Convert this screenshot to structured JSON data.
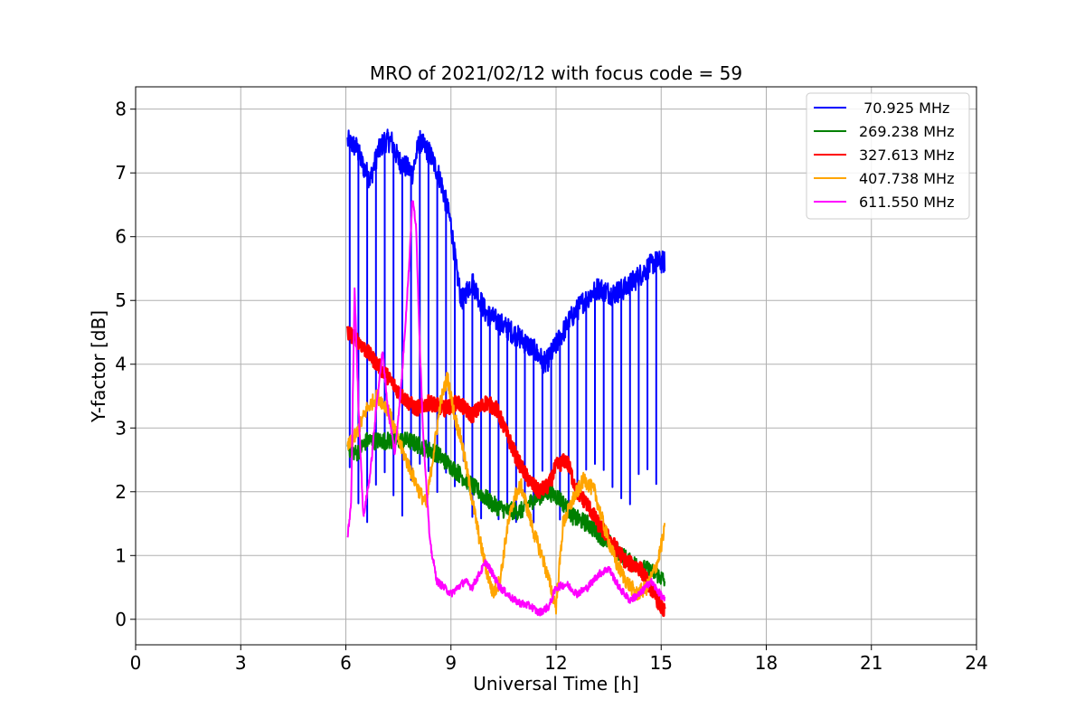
{
  "chart_data": {
    "type": "line",
    "title": "MRO of 2021/02/12 with focus code = 59",
    "xlabel": "Universal Time [h]",
    "ylabel": "Y-factor [dB]",
    "xlim": [
      0,
      24
    ],
    "ylim": [
      -0.4,
      8.35
    ],
    "xticks": [
      0,
      3,
      6,
      9,
      12,
      15,
      18,
      21,
      24
    ],
    "yticks": [
      0,
      1,
      2,
      3,
      4,
      5,
      6,
      7,
      8
    ],
    "grid": true,
    "legend_position": "top-right",
    "series": [
      {
        "name": " 70.925 MHz",
        "color": "#0000ff",
        "dip_interval_h": 0.25,
        "dip_value": 2.0,
        "points": [
          [
            6.05,
            7.5
          ],
          [
            6.3,
            7.4
          ],
          [
            6.5,
            7.1
          ],
          [
            6.7,
            6.9
          ],
          [
            6.9,
            7.3
          ],
          [
            7.1,
            7.5
          ],
          [
            7.3,
            7.5
          ],
          [
            7.5,
            7.2
          ],
          [
            7.7,
            7.1
          ],
          [
            7.9,
            7.0
          ],
          [
            8.1,
            7.5
          ],
          [
            8.4,
            7.3
          ],
          [
            8.7,
            6.9
          ],
          [
            9.0,
            6.2
          ],
          [
            9.15,
            5.5
          ],
          [
            9.3,
            5.0
          ],
          [
            9.6,
            5.3
          ],
          [
            10.0,
            4.8
          ],
          [
            10.5,
            4.6
          ],
          [
            11.0,
            4.4
          ],
          [
            11.4,
            4.2
          ],
          [
            11.7,
            4.0
          ],
          [
            12.0,
            4.3
          ],
          [
            12.4,
            4.7
          ],
          [
            12.8,
            5.0
          ],
          [
            13.2,
            5.2
          ],
          [
            13.6,
            5.1
          ],
          [
            14.0,
            5.2
          ],
          [
            14.4,
            5.4
          ],
          [
            14.8,
            5.6
          ],
          [
            15.1,
            5.6
          ]
        ]
      },
      {
        "name": "269.238 MHz",
        "color": "#008000",
        "points": [
          [
            6.05,
            2.7
          ],
          [
            6.3,
            2.6
          ],
          [
            6.6,
            2.8
          ],
          [
            7.0,
            2.8
          ],
          [
            7.4,
            2.8
          ],
          [
            7.8,
            2.8
          ],
          [
            8.2,
            2.7
          ],
          [
            8.6,
            2.6
          ],
          [
            9.0,
            2.4
          ],
          [
            9.4,
            2.2
          ],
          [
            9.8,
            2.0
          ],
          [
            10.2,
            1.8
          ],
          [
            10.6,
            1.7
          ],
          [
            11.0,
            1.7
          ],
          [
            11.4,
            1.9
          ],
          [
            11.8,
            2.0
          ],
          [
            12.1,
            1.9
          ],
          [
            12.5,
            1.6
          ],
          [
            12.9,
            1.5
          ],
          [
            13.3,
            1.3
          ],
          [
            13.7,
            1.1
          ],
          [
            14.1,
            0.9
          ],
          [
            14.5,
            0.8
          ],
          [
            14.9,
            0.7
          ],
          [
            15.1,
            0.6
          ]
        ]
      },
      {
        "name": "327.613 MHz",
        "color": "#ff0000",
        "points": [
          [
            6.05,
            4.5
          ],
          [
            6.3,
            4.4
          ],
          [
            6.6,
            4.2
          ],
          [
            6.9,
            4.0
          ],
          [
            7.2,
            3.8
          ],
          [
            7.6,
            3.5
          ],
          [
            8.0,
            3.3
          ],
          [
            8.4,
            3.4
          ],
          [
            8.8,
            3.3
          ],
          [
            9.2,
            3.4
          ],
          [
            9.6,
            3.2
          ],
          [
            10.0,
            3.4
          ],
          [
            10.3,
            3.3
          ],
          [
            10.6,
            2.9
          ],
          [
            10.9,
            2.5
          ],
          [
            11.2,
            2.2
          ],
          [
            11.5,
            2.0
          ],
          [
            11.8,
            2.1
          ],
          [
            12.0,
            2.4
          ],
          [
            12.3,
            2.5
          ],
          [
            12.6,
            2.0
          ],
          [
            12.9,
            1.8
          ],
          [
            13.2,
            1.5
          ],
          [
            13.6,
            1.2
          ],
          [
            14.0,
            0.9
          ],
          [
            14.4,
            0.8
          ],
          [
            14.7,
            0.5
          ],
          [
            15.0,
            0.2
          ],
          [
            15.1,
            0.1
          ]
        ]
      },
      {
        "name": "407.738 MHz",
        "color": "#ffa500",
        "points": [
          [
            6.05,
            2.7
          ],
          [
            6.3,
            2.9
          ],
          [
            6.6,
            3.3
          ],
          [
            6.9,
            3.5
          ],
          [
            7.2,
            3.3
          ],
          [
            7.5,
            2.8
          ],
          [
            7.8,
            2.4
          ],
          [
            8.1,
            2.0
          ],
          [
            8.3,
            1.8
          ],
          [
            8.5,
            2.6
          ],
          [
            8.7,
            3.4
          ],
          [
            8.9,
            3.8
          ],
          [
            9.1,
            3.2
          ],
          [
            9.3,
            2.8
          ],
          [
            9.5,
            2.2
          ],
          [
            9.8,
            1.3
          ],
          [
            10.0,
            0.8
          ],
          [
            10.2,
            0.4
          ],
          [
            10.4,
            0.6
          ],
          [
            10.6,
            1.4
          ],
          [
            10.8,
            1.9
          ],
          [
            11.0,
            2.1
          ],
          [
            11.2,
            1.7
          ],
          [
            11.4,
            1.3
          ],
          [
            11.6,
            1.0
          ],
          [
            11.8,
            0.6
          ],
          [
            12.0,
            0.2
          ],
          [
            12.2,
            1.5
          ],
          [
            12.5,
            1.9
          ],
          [
            12.8,
            2.2
          ],
          [
            13.1,
            2.0
          ],
          [
            13.4,
            1.4
          ],
          [
            13.7,
            0.9
          ],
          [
            14.0,
            0.6
          ],
          [
            14.3,
            0.4
          ],
          [
            14.6,
            0.5
          ],
          [
            14.9,
            0.9
          ],
          [
            15.1,
            1.4
          ]
        ]
      },
      {
        "name": "611.550 MHz",
        "color": "#ff00ff",
        "points": [
          [
            6.05,
            1.3
          ],
          [
            6.15,
            1.8
          ],
          [
            6.25,
            5.2
          ],
          [
            6.35,
            3.5
          ],
          [
            6.5,
            1.6
          ],
          [
            6.7,
            2.3
          ],
          [
            6.9,
            3.5
          ],
          [
            7.05,
            4.2
          ],
          [
            7.2,
            3.3
          ],
          [
            7.4,
            2.6
          ],
          [
            7.6,
            3.8
          ],
          [
            7.8,
            5.5
          ],
          [
            7.9,
            6.6
          ],
          [
            8.0,
            6.2
          ],
          [
            8.1,
            4.5
          ],
          [
            8.2,
            3.0
          ],
          [
            8.4,
            1.2
          ],
          [
            8.6,
            0.6
          ],
          [
            8.8,
            0.5
          ],
          [
            9.0,
            0.4
          ],
          [
            9.2,
            0.5
          ],
          [
            9.4,
            0.6
          ],
          [
            9.6,
            0.5
          ],
          [
            9.8,
            0.7
          ],
          [
            10.0,
            0.9
          ],
          [
            10.2,
            0.7
          ],
          [
            10.4,
            0.5
          ],
          [
            10.6,
            0.4
          ],
          [
            10.8,
            0.3
          ],
          [
            11.0,
            0.25
          ],
          [
            11.3,
            0.2
          ],
          [
            11.5,
            0.1
          ],
          [
            11.8,
            0.2
          ],
          [
            12.0,
            0.5
          ],
          [
            12.3,
            0.55
          ],
          [
            12.6,
            0.4
          ],
          [
            12.9,
            0.5
          ],
          [
            13.2,
            0.7
          ],
          [
            13.5,
            0.8
          ],
          [
            13.8,
            0.5
          ],
          [
            14.1,
            0.3
          ],
          [
            14.4,
            0.4
          ],
          [
            14.7,
            0.6
          ],
          [
            15.1,
            0.3
          ]
        ]
      }
    ]
  }
}
